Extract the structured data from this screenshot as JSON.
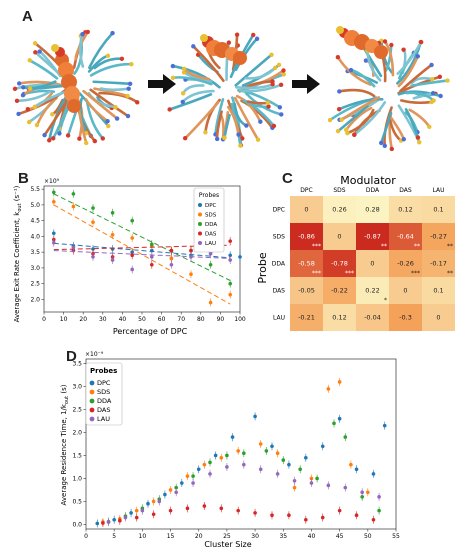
{
  "panel_labels": [
    "A",
    "B",
    "C",
    "D"
  ],
  "colors": {
    "DPC": "#1f77b4",
    "SDS": "#ff7f0e",
    "DDA": "#2ca02c",
    "DAS": "#d62728",
    "LAU": "#9467bd",
    "heat_low": "#fbf6c5",
    "heat_high": "#c9241c"
  },
  "chart_data": [
    {
      "type": "scatter",
      "panel": "B",
      "xlabel": "Percentage of DPC",
      "ylabel": "Average Exit Rate Coefficient, k",
      "ylabel_sub": "out",
      "ylabel_unit": " (s⁻¹)",
      "exponent": "×10⁹",
      "xlim": [
        0,
        100
      ],
      "ylim": [
        1.6,
        5.6
      ],
      "xticks": [
        0,
        10,
        20,
        30,
        40,
        50,
        60,
        70,
        80,
        90,
        100
      ],
      "yticks": [
        2.0,
        2.5,
        3.0,
        3.5,
        4.0,
        4.5,
        5.0,
        5.5
      ],
      "legend_title": "Probes",
      "legend_position": "top-right",
      "series": [
        {
          "name": "DPC",
          "x": [
            5,
            15,
            25,
            35,
            45,
            55,
            65,
            75,
            85,
            95,
            100
          ],
          "y": [
            4.1,
            3.7,
            3.6,
            3.6,
            3.5,
            3.55,
            3.3,
            3.4,
            3.5,
            3.4,
            3.35
          ],
          "fit": [
            3.78,
            3.32
          ]
        },
        {
          "name": "SDS",
          "x": [
            5,
            15,
            25,
            35,
            45,
            55,
            65,
            75,
            85,
            95
          ],
          "y": [
            5.1,
            4.95,
            4.45,
            4.05,
            3.95,
            3.7,
            3.3,
            2.8,
            1.9,
            2.15
          ],
          "fit": [
            5.0,
            1.85
          ]
        },
        {
          "name": "DDA",
          "x": [
            5,
            15,
            25,
            35,
            45,
            55,
            65,
            75,
            85,
            95
          ],
          "y": [
            5.4,
            5.35,
            4.9,
            4.75,
            4.5,
            3.75,
            3.55,
            3.55,
            3.1,
            2.5
          ],
          "fit": [
            5.35,
            2.6
          ]
        },
        {
          "name": "DAS",
          "x": [
            5,
            15,
            25,
            35,
            45,
            55,
            65,
            75,
            85,
            95
          ],
          "y": [
            3.9,
            3.55,
            3.45,
            3.35,
            3.4,
            3.1,
            3.55,
            3.55,
            3.75,
            3.85
          ],
          "fit": [
            3.58,
            3.72
          ]
        },
        {
          "name": "LAU",
          "x": [
            5,
            15,
            25,
            35,
            45,
            55,
            65,
            75,
            85,
            95
          ],
          "y": [
            3.8,
            3.65,
            3.35,
            3.25,
            2.95,
            3.35,
            3.1,
            3.35,
            3.45,
            3.25
          ],
          "fit": [
            3.55,
            3.3
          ]
        }
      ]
    },
    {
      "type": "heatmap",
      "panel": "C",
      "title": "Modulator",
      "ylabel": "Probe",
      "columns": [
        "DPC",
        "SDS",
        "DDA",
        "DAS",
        "LAU"
      ],
      "rows": [
        "DPC",
        "SDS",
        "DDA",
        "DAS",
        "LAU"
      ],
      "values": [
        [
          0,
          0.26,
          0.28,
          0.12,
          0.1
        ],
        [
          -0.86,
          0,
          -0.87,
          -0.64,
          -0.27
        ],
        [
          -0.58,
          -0.78,
          0,
          -0.26,
          -0.17
        ],
        [
          -0.05,
          -0.22,
          0.22,
          0,
          0.1
        ],
        [
          -0.21,
          0.12,
          -0.04,
          -0.3,
          0
        ]
      ],
      "labels": [
        [
          "0",
          "0.26",
          "0.28",
          "0.12",
          "0.1"
        ],
        [
          "-0.86",
          "0",
          "-0.87",
          "-0.64",
          "-0.27"
        ],
        [
          "-0.58",
          "-0.78",
          "0",
          "-0.26",
          "-0.17"
        ],
        [
          "-0.05",
          "-0.22",
          "0.22",
          "0",
          "0.1"
        ],
        [
          "-0.21",
          "0.12",
          "-0.04",
          "-0.3",
          "0"
        ]
      ],
      "significance": [
        [
          "",
          "",
          "",
          "",
          ""
        ],
        [
          "***",
          "",
          "**",
          "**",
          "**"
        ],
        [
          "***",
          "***",
          "",
          "***",
          "**"
        ],
        [
          "",
          "",
          "*",
          "",
          ""
        ],
        [
          "",
          "",
          "",
          "",
          ""
        ]
      ]
    },
    {
      "type": "scatter",
      "panel": "D",
      "xlabel": "Cluster Size",
      "ylabel": "Average Residence Time, 1/k",
      "ylabel_sub": "out",
      "ylabel_unit": " (s)",
      "exponent": "×10⁻⁹",
      "xlim": [
        0,
        55
      ],
      "ylim": [
        -0.1,
        3.6
      ],
      "xticks": [
        0,
        5,
        10,
        15,
        20,
        25,
        30,
        35,
        40,
        45,
        50,
        55
      ],
      "yticks": [
        0.0,
        0.5,
        1.0,
        1.5,
        2.0,
        2.5,
        3.0,
        3.5
      ],
      "legend_title": "Probes",
      "legend_position": "top-left",
      "series": [
        {
          "name": "DPC",
          "x": [
            2,
            5,
            8,
            11,
            14,
            17,
            20,
            23,
            26,
            30,
            33,
            36,
            39,
            42,
            45,
            48,
            51,
            53
          ],
          "y": [
            0.02,
            0.1,
            0.25,
            0.45,
            0.65,
            0.9,
            1.2,
            1.5,
            1.9,
            2.35,
            1.7,
            1.3,
            1.45,
            1.7,
            2.3,
            1.2,
            1.1,
            2.15
          ]
        },
        {
          "name": "SDS",
          "x": [
            3,
            6,
            9,
            12,
            15,
            18,
            21,
            24,
            27,
            31,
            34,
            37,
            40,
            43,
            45,
            47,
            50
          ],
          "y": [
            0.05,
            0.12,
            0.3,
            0.5,
            0.75,
            1.05,
            1.3,
            1.45,
            1.6,
            1.75,
            1.55,
            0.8,
            1.0,
            2.95,
            3.1,
            1.3,
            0.7
          ]
        },
        {
          "name": "DDA",
          "x": [
            4,
            7,
            10,
            13,
            16,
            19,
            22,
            25,
            28,
            32,
            35,
            38,
            41,
            44,
            46,
            49,
            52
          ],
          "y": [
            0.06,
            0.18,
            0.35,
            0.55,
            0.8,
            1.05,
            1.35,
            1.5,
            1.55,
            1.6,
            1.4,
            1.2,
            1.0,
            2.2,
            1.9,
            0.6,
            0.3
          ]
        },
        {
          "name": "DAS",
          "x": [
            3,
            6,
            9,
            12,
            15,
            18,
            21,
            24,
            27,
            30,
            33,
            36,
            39,
            42,
            45,
            48,
            51
          ],
          "y": [
            0.03,
            0.08,
            0.15,
            0.22,
            0.3,
            0.35,
            0.4,
            0.35,
            0.3,
            0.25,
            0.2,
            0.2,
            0.1,
            0.15,
            0.3,
            0.2,
            0.1
          ]
        },
        {
          "name": "LAU",
          "x": [
            4,
            7,
            10,
            13,
            16,
            19,
            22,
            25,
            28,
            31,
            34,
            37,
            40,
            43,
            46,
            49,
            52
          ],
          "y": [
            0.05,
            0.15,
            0.3,
            0.5,
            0.7,
            0.9,
            1.1,
            1.25,
            1.3,
            1.2,
            1.1,
            0.95,
            0.9,
            0.85,
            0.8,
            0.7,
            0.6
          ]
        }
      ]
    }
  ]
}
